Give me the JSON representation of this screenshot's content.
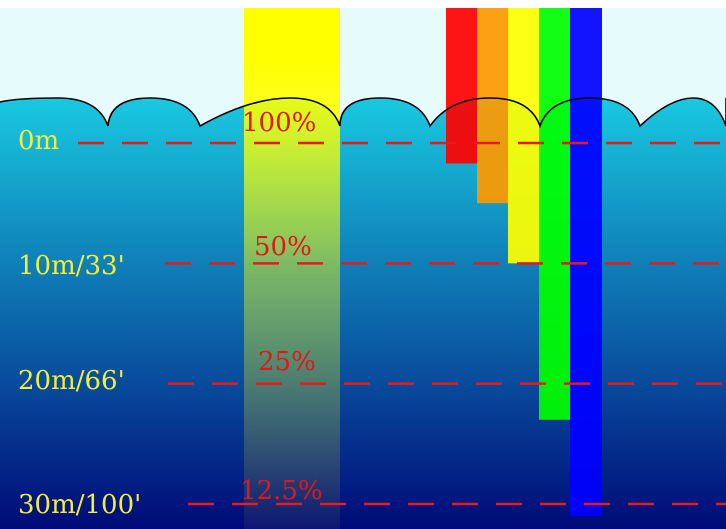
{
  "colors": {
    "sky": "#e6fbfb",
    "water_surface": "#19c9e0",
    "water_deep": "#000a78",
    "outline": "#000000",
    "depth_line": "#e81b1b",
    "depth_text": "#f2ee3a",
    "percent_text": "#e51616",
    "sunlight": "#ffff00"
  },
  "depth_markers": [
    {
      "label": "0m",
      "depth_m": 0
    },
    {
      "label": "10m/33'",
      "depth_m": 10
    },
    {
      "label": "20m/66'",
      "depth_m": 20
    },
    {
      "label": "30m/100'",
      "depth_m": 30
    }
  ],
  "intensity_labels": [
    {
      "label": "100%",
      "depth_m": 0
    },
    {
      "label": "50%",
      "depth_m": 10
    },
    {
      "label": "25%",
      "depth_m": 20
    },
    {
      "label": "12.5%",
      "depth_m": 30
    }
  ],
  "color_bands": [
    {
      "color": "red",
      "hex": "#ff0000",
      "absorbed_at_m": 1.7
    },
    {
      "color": "orange",
      "hex": "#ff9900",
      "absorbed_at_m": 5.0
    },
    {
      "color": "yellow",
      "hex": "#ffff00",
      "absorbed_at_m": 10.0
    },
    {
      "color": "green",
      "hex": "#00ff00",
      "absorbed_at_m": 23.0
    },
    {
      "color": "blue",
      "hex": "#0000ff",
      "absorbed_at_m": 31.0
    }
  ]
}
